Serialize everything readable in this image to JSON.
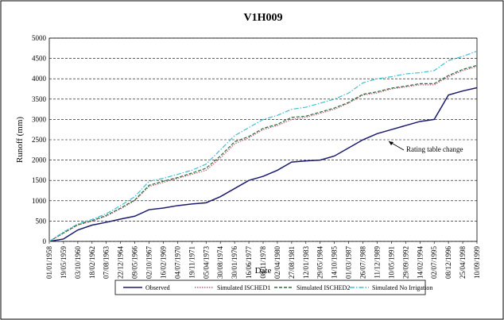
{
  "chart_data": {
    "type": "line",
    "title": "V1H009",
    "x_label": "Date",
    "y_label": "Runoff (mm)",
    "annotation": "Rating table change",
    "categories": [
      "01/01/1958",
      "19/05/1959",
      "03/10/1960",
      "18/02/1962",
      "07/08/1963",
      "22/12/1964",
      "09/05/1966",
      "02/10/1967",
      "16/02/1969",
      "04/07/1970",
      "19/11/1971",
      "05/04/1973",
      "30/08/1974",
      "30/01/1976",
      "16/06/1977",
      "08/11/1978",
      "02/04/1980",
      "27/08/1981",
      "12/01/1983",
      "29/05/1984",
      "14/10/1985",
      "01/03/1987",
      "26/07/1988",
      "11/12/1989",
      "10/05/1991",
      "29/09/1992",
      "14/02/1994",
      "02/07/1995",
      "08/12/1996",
      "25/04/1998",
      "10/09/1999"
    ],
    "series": [
      {
        "name": "Observed",
        "color": "#1a1a6e",
        "dash": "solid",
        "values": [
          0,
          60,
          280,
          400,
          470,
          550,
          620,
          780,
          820,
          880,
          920,
          950,
          1100,
          1300,
          1500,
          1600,
          1750,
          1950,
          1980,
          2000,
          2100,
          2300,
          2500,
          2650,
          2750,
          2850,
          2950,
          3000,
          3600,
          3700,
          3780
        ]
      },
      {
        "name": "Simulated ISCHED1",
        "color": "#c06080",
        "dash": "dotted",
        "values": [
          0,
          200,
          400,
          500,
          620,
          800,
          1000,
          1350,
          1450,
          1550,
          1650,
          1750,
          2050,
          2400,
          2550,
          2750,
          2850,
          3000,
          3050,
          3150,
          3250,
          3400,
          3600,
          3650,
          3750,
          3800,
          3850,
          3850,
          4050,
          4200,
          4300
        ]
      },
      {
        "name": "Simulated ISCHED2",
        "color": "#2e6b3a",
        "dash": "dashed",
        "values": [
          0,
          210,
          410,
          510,
          640,
          820,
          1020,
          1380,
          1480,
          1570,
          1680,
          1800,
          2100,
          2450,
          2580,
          2780,
          2880,
          3050,
          3080,
          3180,
          3280,
          3420,
          3620,
          3680,
          3770,
          3820,
          3880,
          3880,
          4080,
          4230,
          4330
        ]
      },
      {
        "name": "Simulated No Irrigation",
        "color": "#40c0d0",
        "dash": "dashdot",
        "values": [
          0,
          230,
          430,
          540,
          680,
          880,
          1100,
          1480,
          1550,
          1650,
          1750,
          1900,
          2250,
          2600,
          2800,
          3000,
          3100,
          3250,
          3300,
          3400,
          3500,
          3650,
          3900,
          4000,
          4050,
          4120,
          4150,
          4200,
          4450,
          4550,
          4680
        ]
      }
    ],
    "ylim": [
      0,
      5000
    ],
    "yticks": [
      0,
      500,
      1000,
      1500,
      2000,
      2500,
      3000,
      3500,
      4000,
      4500,
      5000
    ],
    "grid": true,
    "legend": "bottom"
  }
}
